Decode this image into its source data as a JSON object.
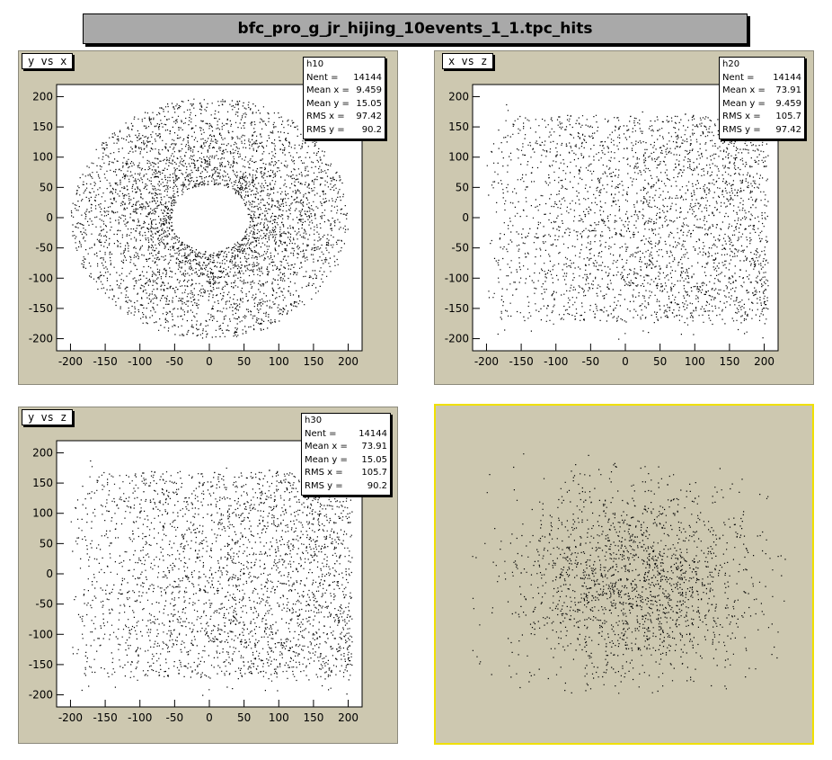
{
  "canvas": {
    "title": "bfc_pro_g_jr_hijing_10events_1_1.tpc_hits"
  },
  "colors": {
    "pad_fill": "#cdc8b0",
    "frame": "#ffffff",
    "markers": "#000000",
    "selected_border": "#f0e000"
  },
  "chart_data": [
    {
      "type": "scatter",
      "title": "y vs x",
      "xlabel": "",
      "ylabel": "",
      "xlim": [
        -220,
        220
      ],
      "ylim": [
        -220,
        220
      ],
      "xticks": [
        -200,
        -150,
        -100,
        -50,
        0,
        50,
        100,
        150,
        200
      ],
      "yticks": [
        -200,
        -150,
        -100,
        -50,
        0,
        50,
        100,
        150,
        200
      ],
      "stats": {
        "name": "h10",
        "entries_label": "Nent",
        "entries": "14144",
        "mean_x": "9.459",
        "mean_y": "15.05",
        "rms_x": "97.42",
        "rms_y": "90.2"
      },
      "distribution": "ring",
      "points": 4200
    },
    {
      "type": "scatter",
      "title": "x vs z",
      "xlabel": "",
      "ylabel": "",
      "xlim": [
        -220,
        220
      ],
      "ylim": [
        -220,
        220
      ],
      "xticks": [
        -200,
        -150,
        -100,
        -50,
        0,
        50,
        100,
        150,
        200
      ],
      "yticks": [
        -200,
        -150,
        -100,
        -50,
        0,
        50,
        100,
        150,
        200
      ],
      "stats": {
        "name": "h20",
        "entries_label": "Nent",
        "entries": "14144",
        "mean_x": "73.91",
        "mean_y": "9.459",
        "rms_x": "105.7",
        "rms_y": "97.42"
      },
      "distribution": "sheet",
      "points": 4200
    },
    {
      "type": "scatter",
      "title": "y vs z",
      "xlabel": "",
      "ylabel": "",
      "xlim": [
        -220,
        220
      ],
      "ylim": [
        -220,
        220
      ],
      "xticks": [
        -200,
        -150,
        -100,
        -50,
        0,
        50,
        100,
        150,
        200
      ],
      "yticks": [
        -200,
        -150,
        -100,
        -50,
        0,
        50,
        100,
        150,
        200
      ],
      "stats": {
        "name": "h30",
        "entries_label": "Nent",
        "entries": "14144",
        "mean_x": "73.91",
        "mean_y": "15.05",
        "rms_x": "105.7",
        "rms_y": "90.2"
      },
      "distribution": "sheet",
      "points": 4200
    },
    {
      "type": "scatter",
      "title": "",
      "distribution": "cloud",
      "points": 4200
    }
  ]
}
